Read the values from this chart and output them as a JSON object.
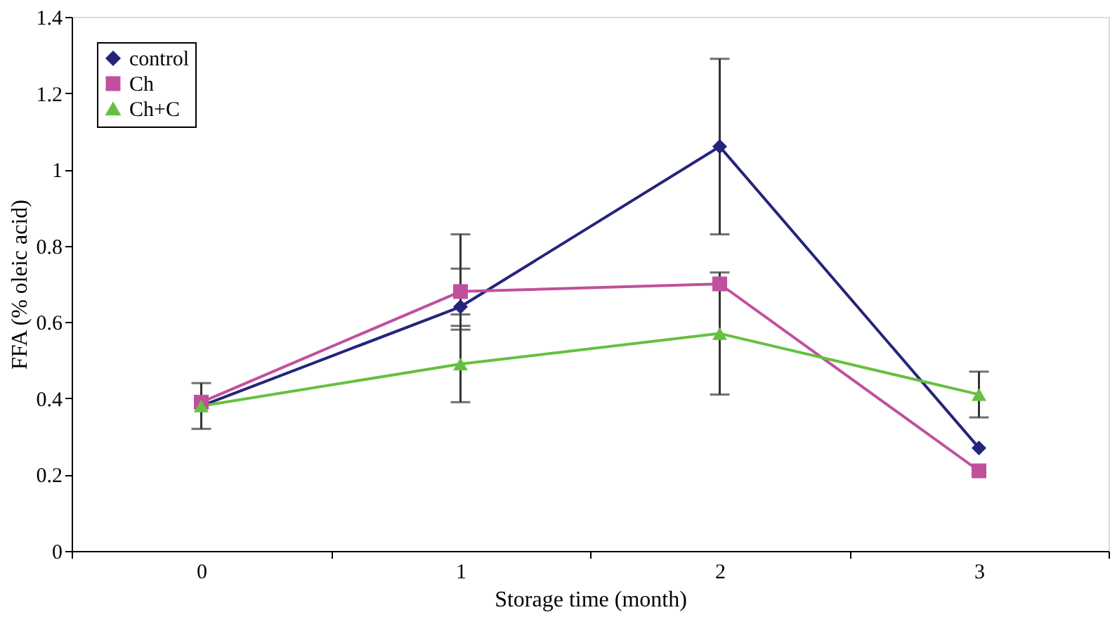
{
  "chart_data": {
    "type": "line",
    "xlabel": "Storage time (month)",
    "ylabel": "FFA (% oleic acid)",
    "categories": [
      "0",
      "1",
      "2",
      "3"
    ],
    "ylim": [
      0,
      1.4
    ],
    "yticks": [
      {
        "value": 0,
        "label": "0"
      },
      0.2,
      0.4,
      0.6,
      0.8,
      {
        "value": 1,
        "label": "1"
      },
      1.2,
      1.4
    ],
    "grid": false,
    "legend": "top left",
    "line_style": "solid",
    "series": [
      {
        "name": "control",
        "color": "#24247a",
        "marker": "diamond",
        "values": [
          0.38,
          0.64,
          1.06,
          0.27
        ],
        "errors": [
          0.06,
          [
            0.58,
            0.83
          ],
          0.23,
          null
        ]
      },
      {
        "name": "Ch",
        "color": "#c0509c",
        "marker": "square",
        "values": [
          0.39,
          0.68,
          0.7,
          0.21
        ],
        "errors": [
          null,
          [
            0.62,
            0.74
          ],
          null,
          null
        ]
      },
      {
        "name": "Ch+C",
        "color": "#66c040",
        "marker": "triangle",
        "values": [
          0.38,
          0.49,
          0.57,
          0.41
        ],
        "errors": [
          null,
          0.1,
          0.16,
          0.06
        ]
      }
    ]
  }
}
